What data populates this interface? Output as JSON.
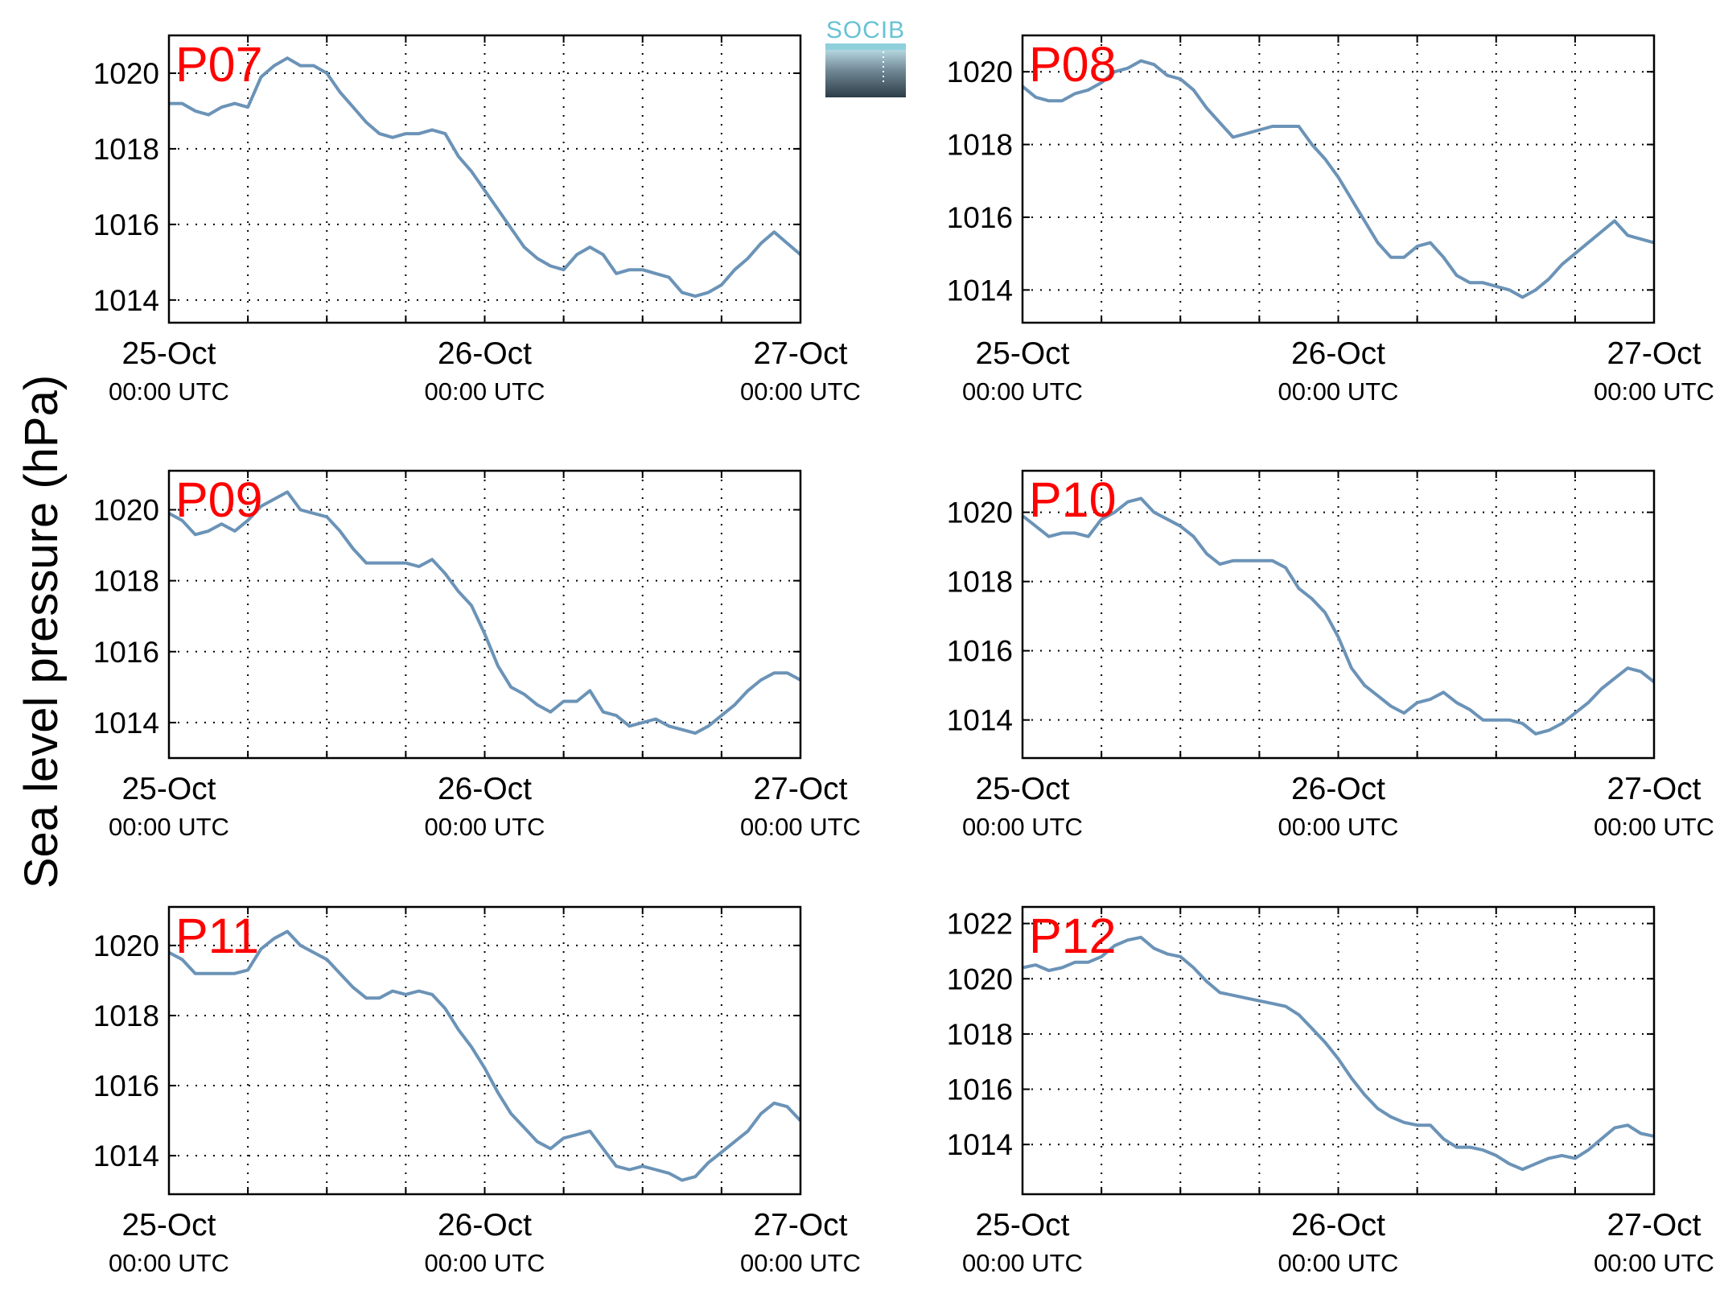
{
  "figure": {
    "ylabel": "Sea level pressure (hPa)",
    "logo_text": "SOCIB",
    "line_color": "#6b93b7",
    "label_color": "#ff0000"
  },
  "chart_data": [
    {
      "type": "line",
      "name": "P07",
      "x_ticks": [
        {
          "date": "25-Oct",
          "time": "00:00 UTC"
        },
        {
          "date": "26-Oct",
          "time": "00:00 UTC"
        },
        {
          "date": "27-Oct",
          "time": "00:00 UTC"
        }
      ],
      "xlim_hours": [
        0,
        48
      ],
      "y_ticks": [
        1014,
        1016,
        1018,
        1020
      ],
      "ylim": [
        1013.4,
        1021
      ],
      "grid": true,
      "x": [
        0,
        1,
        2,
        3,
        4,
        5,
        6,
        7,
        8,
        9,
        10,
        11,
        12,
        13,
        14,
        15,
        16,
        17,
        18,
        19,
        20,
        21,
        22,
        23,
        24,
        25,
        26,
        27,
        28,
        29,
        30,
        31,
        32,
        33,
        34,
        35,
        36,
        37,
        38,
        39,
        40,
        41,
        42,
        43,
        44,
        45,
        46,
        47,
        48
      ],
      "y": [
        1019.2,
        1019.2,
        1019.0,
        1018.9,
        1019.1,
        1019.2,
        1019.1,
        1019.9,
        1020.2,
        1020.4,
        1020.2,
        1020.2,
        1020.0,
        1019.5,
        1019.1,
        1018.7,
        1018.4,
        1018.3,
        1018.4,
        1018.4,
        1018.5,
        1018.4,
        1017.8,
        1017.4,
        1016.9,
        1016.4,
        1015.9,
        1015.4,
        1015.1,
        1014.9,
        1014.8,
        1015.2,
        1015.4,
        1015.2,
        1014.7,
        1014.8,
        1014.8,
        1014.7,
        1014.6,
        1014.2,
        1014.1,
        1014.2,
        1014.4,
        1014.8,
        1015.1,
        1015.5,
        1015.8,
        1015.5,
        1015.2
      ]
    },
    {
      "type": "line",
      "name": "P08",
      "x_ticks": [
        {
          "date": "25-Oct",
          "time": "00:00 UTC"
        },
        {
          "date": "26-Oct",
          "time": "00:00 UTC"
        },
        {
          "date": "27-Oct",
          "time": "00:00 UTC"
        }
      ],
      "xlim_hours": [
        0,
        48
      ],
      "y_ticks": [
        1014,
        1016,
        1018,
        1020
      ],
      "ylim": [
        1013.1,
        1021
      ],
      "grid": true,
      "x": [
        0,
        1,
        2,
        3,
        4,
        5,
        6,
        7,
        8,
        9,
        10,
        11,
        12,
        13,
        14,
        15,
        16,
        17,
        18,
        19,
        20,
        21,
        22,
        23,
        24,
        25,
        26,
        27,
        28,
        29,
        30,
        31,
        32,
        33,
        34,
        35,
        36,
        37,
        38,
        39,
        40,
        41,
        42,
        43,
        44,
        45,
        46,
        47,
        48
      ],
      "y": [
        1019.6,
        1019.3,
        1019.2,
        1019.2,
        1019.4,
        1019.5,
        1019.7,
        1020.0,
        1020.1,
        1020.3,
        1020.2,
        1019.9,
        1019.8,
        1019.5,
        1019.0,
        1018.6,
        1018.2,
        1018.3,
        1018.4,
        1018.5,
        1018.5,
        1018.5,
        1018.0,
        1017.6,
        1017.1,
        1016.5,
        1015.9,
        1015.3,
        1014.9,
        1014.9,
        1015.2,
        1015.3,
        1014.9,
        1014.4,
        1014.2,
        1014.2,
        1014.1,
        1014.0,
        1013.8,
        1014.0,
        1014.3,
        1014.7,
        1015.0,
        1015.3,
        1015.6,
        1015.9,
        1015.5,
        1015.4,
        1015.3
      ]
    },
    {
      "type": "line",
      "name": "P09",
      "x_ticks": [
        {
          "date": "25-Oct",
          "time": "00:00 UTC"
        },
        {
          "date": "26-Oct",
          "time": "00:00 UTC"
        },
        {
          "date": "27-Oct",
          "time": "00:00 UTC"
        }
      ],
      "xlim_hours": [
        0,
        48
      ],
      "y_ticks": [
        1014,
        1016,
        1018,
        1020
      ],
      "ylim": [
        1013.0,
        1021.1
      ],
      "grid": true,
      "x": [
        0,
        1,
        2,
        3,
        4,
        5,
        6,
        7,
        8,
        9,
        10,
        11,
        12,
        13,
        14,
        15,
        16,
        17,
        18,
        19,
        20,
        21,
        22,
        23,
        24,
        25,
        26,
        27,
        28,
        29,
        30,
        31,
        32,
        33,
        34,
        35,
        36,
        37,
        38,
        39,
        40,
        41,
        42,
        43,
        44,
        45,
        46,
        47,
        48
      ],
      "y": [
        1019.9,
        1019.7,
        1019.3,
        1019.4,
        1019.6,
        1019.4,
        1019.7,
        1020.1,
        1020.3,
        1020.5,
        1020.0,
        1019.9,
        1019.8,
        1019.4,
        1018.9,
        1018.5,
        1018.5,
        1018.5,
        1018.5,
        1018.4,
        1018.6,
        1018.2,
        1017.7,
        1017.3,
        1016.5,
        1015.6,
        1015.0,
        1014.8,
        1014.5,
        1014.3,
        1014.6,
        1014.6,
        1014.9,
        1014.3,
        1014.2,
        1013.9,
        1014.0,
        1014.1,
        1013.9,
        1013.8,
        1013.7,
        1013.9,
        1014.2,
        1014.5,
        1014.9,
        1015.2,
        1015.4,
        1015.4,
        1015.2
      ]
    },
    {
      "type": "line",
      "name": "P10",
      "x_ticks": [
        {
          "date": "25-Oct",
          "time": "00:00 UTC"
        },
        {
          "date": "26-Oct",
          "time": "00:00 UTC"
        },
        {
          "date": "27-Oct",
          "time": "00:00 UTC"
        }
      ],
      "xlim_hours": [
        0,
        48
      ],
      "y_ticks": [
        1014,
        1016,
        1018,
        1020
      ],
      "ylim": [
        1012.9,
        1021.2
      ],
      "grid": true,
      "x": [
        0,
        1,
        2,
        3,
        4,
        5,
        6,
        7,
        8,
        9,
        10,
        11,
        12,
        13,
        14,
        15,
        16,
        17,
        18,
        19,
        20,
        21,
        22,
        23,
        24,
        25,
        26,
        27,
        28,
        29,
        30,
        31,
        32,
        33,
        34,
        35,
        36,
        37,
        38,
        39,
        40,
        41,
        42,
        43,
        44,
        45,
        46,
        47,
        48
      ],
      "y": [
        1019.9,
        1019.6,
        1019.3,
        1019.4,
        1019.4,
        1019.3,
        1019.8,
        1020.0,
        1020.3,
        1020.4,
        1020.0,
        1019.8,
        1019.6,
        1019.3,
        1018.8,
        1018.5,
        1018.6,
        1018.6,
        1018.6,
        1018.6,
        1018.4,
        1017.8,
        1017.5,
        1017.1,
        1016.4,
        1015.5,
        1015.0,
        1014.7,
        1014.4,
        1014.2,
        1014.5,
        1014.6,
        1014.8,
        1014.5,
        1014.3,
        1014.0,
        1014.0,
        1014.0,
        1013.9,
        1013.6,
        1013.7,
        1013.9,
        1014.2,
        1014.5,
        1014.9,
        1015.2,
        1015.5,
        1015.4,
        1015.1
      ]
    },
    {
      "type": "line",
      "name": "P11",
      "x_ticks": [
        {
          "date": "25-Oct",
          "time": "00:00 UTC"
        },
        {
          "date": "26-Oct",
          "time": "00:00 UTC"
        },
        {
          "date": "27-Oct",
          "time": "00:00 UTC"
        }
      ],
      "xlim_hours": [
        0,
        48
      ],
      "y_ticks": [
        1014,
        1016,
        1018,
        1020
      ],
      "ylim": [
        1012.9,
        1021.1
      ],
      "grid": true,
      "x": [
        0,
        1,
        2,
        3,
        4,
        5,
        6,
        7,
        8,
        9,
        10,
        11,
        12,
        13,
        14,
        15,
        16,
        17,
        18,
        19,
        20,
        21,
        22,
        23,
        24,
        25,
        26,
        27,
        28,
        29,
        30,
        31,
        32,
        33,
        34,
        35,
        36,
        37,
        38,
        39,
        40,
        41,
        42,
        43,
        44,
        45,
        46,
        47,
        48
      ],
      "y": [
        1019.8,
        1019.6,
        1019.2,
        1019.2,
        1019.2,
        1019.2,
        1019.3,
        1019.9,
        1020.2,
        1020.4,
        1020.0,
        1019.8,
        1019.6,
        1019.2,
        1018.8,
        1018.5,
        1018.5,
        1018.7,
        1018.6,
        1018.7,
        1018.6,
        1018.2,
        1017.6,
        1017.1,
        1016.5,
        1015.8,
        1015.2,
        1014.8,
        1014.4,
        1014.2,
        1014.5,
        1014.6,
        1014.7,
        1014.2,
        1013.7,
        1013.6,
        1013.7,
        1013.6,
        1013.5,
        1013.3,
        1013.4,
        1013.8,
        1014.1,
        1014.4,
        1014.7,
        1015.2,
        1015.5,
        1015.4,
        1015.0
      ]
    },
    {
      "type": "line",
      "name": "P12",
      "x_ticks": [
        {
          "date": "25-Oct",
          "time": "00:00 UTC"
        },
        {
          "date": "26-Oct",
          "time": "00:00 UTC"
        },
        {
          "date": "27-Oct",
          "time": "00:00 UTC"
        }
      ],
      "xlim_hours": [
        0,
        48
      ],
      "y_ticks": [
        1014,
        1016,
        1018,
        1020,
        1022
      ],
      "ylim": [
        1012.2,
        1022.6
      ],
      "grid": true,
      "x": [
        0,
        1,
        2,
        3,
        4,
        5,
        6,
        7,
        8,
        9,
        10,
        11,
        12,
        13,
        14,
        15,
        16,
        17,
        18,
        19,
        20,
        21,
        22,
        23,
        24,
        25,
        26,
        27,
        28,
        29,
        30,
        31,
        32,
        33,
        34,
        35,
        36,
        37,
        38,
        39,
        40,
        41,
        42,
        43,
        44,
        45,
        46,
        47,
        48
      ],
      "y": [
        1020.4,
        1020.5,
        1020.3,
        1020.4,
        1020.6,
        1020.6,
        1020.8,
        1021.2,
        1021.4,
        1021.5,
        1021.1,
        1020.9,
        1020.8,
        1020.4,
        1019.9,
        1019.5,
        1019.4,
        1019.3,
        1019.2,
        1019.1,
        1019.0,
        1018.7,
        1018.2,
        1017.7,
        1017.1,
        1016.4,
        1015.8,
        1015.3,
        1015.0,
        1014.8,
        1014.7,
        1014.7,
        1014.2,
        1013.9,
        1013.9,
        1013.8,
        1013.6,
        1013.3,
        1013.1,
        1013.3,
        1013.5,
        1013.6,
        1013.5,
        1013.8,
        1014.2,
        1014.6,
        1014.7,
        1014.4,
        1014.3
      ]
    }
  ]
}
